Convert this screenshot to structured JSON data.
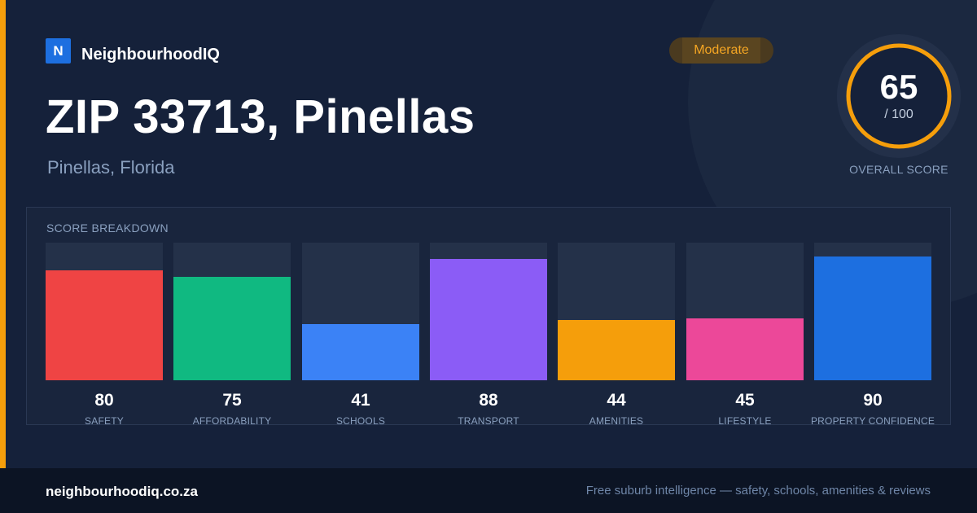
{
  "brand": {
    "logo_letter": "N",
    "name": "NeighbourhoodIQ"
  },
  "header": {
    "title": "ZIP 33713, Pinellas",
    "subtitle": "Pinellas, Florida",
    "rating_badge": "Moderate"
  },
  "overall_score": {
    "value": "65",
    "max_label": "/ 100",
    "label": "OVERALL SCORE",
    "fraction": 0.65
  },
  "breakdown": {
    "title": "SCORE BREAKDOWN",
    "items": [
      {
        "label": "SAFETY",
        "value": "80",
        "score": 80,
        "color": "#ef4444"
      },
      {
        "label": "AFFORDABILITY",
        "value": "75",
        "score": 75,
        "color": "#10b981"
      },
      {
        "label": "SCHOOLS",
        "value": "41",
        "score": 41,
        "color": "#3b82f6"
      },
      {
        "label": "TRANSPORT",
        "value": "88",
        "score": 88,
        "color": "#8b5cf6"
      },
      {
        "label": "AMENITIES",
        "value": "44",
        "score": 44,
        "color": "#f59e0b"
      },
      {
        "label": "LIFESTYLE",
        "value": "45",
        "score": 45,
        "color": "#ec4899"
      },
      {
        "label": "PROPERTY CONFIDENCE",
        "value": "90",
        "score": 90,
        "color": "#1d6fe0"
      }
    ]
  },
  "colors": {
    "accent": "#f59e0b",
    "background": "#15213a",
    "brand_blue": "#1d6fe0"
  },
  "footer": {
    "url": "neighbourhoodiq.co.za",
    "tagline": "Free suburb intelligence — safety, schools, amenities & reviews"
  }
}
